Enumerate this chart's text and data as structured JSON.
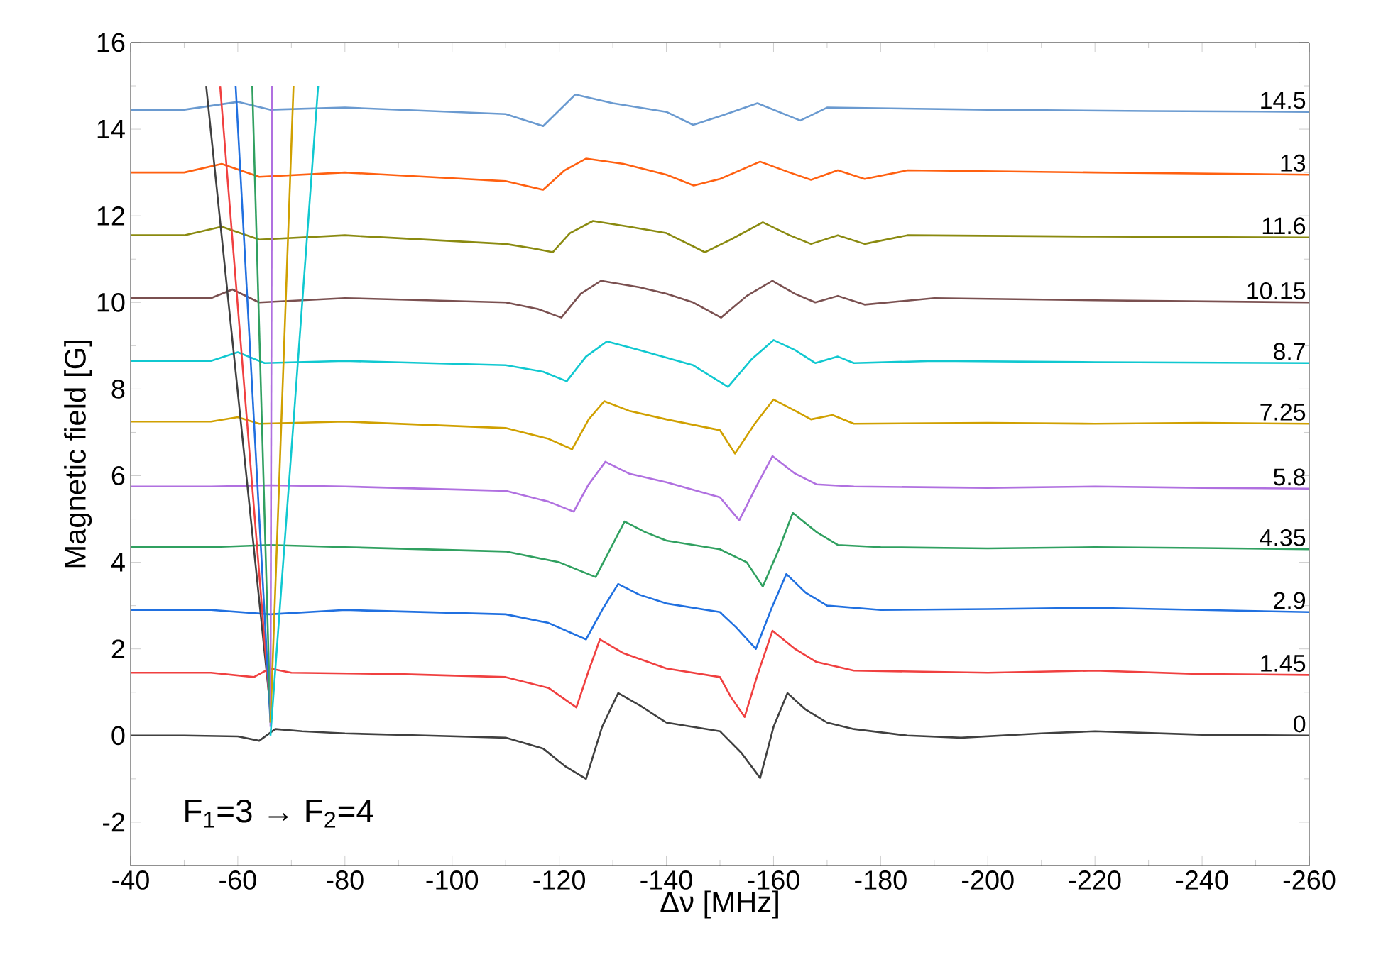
{
  "chart_data": {
    "type": "line",
    "xlabel": "Δν [MHz]",
    "ylabel": "Magnetic field [G]",
    "annotations": [
      "F$_{1}$=3 → F$_{2}$=4"
    ],
    "xlim": [
      -40,
      -260
    ],
    "ylim": [
      -3,
      16
    ],
    "xticks": [
      -40,
      -60,
      -80,
      -100,
      -120,
      -140,
      -160,
      -180,
      -200,
      -220,
      -240,
      -260
    ],
    "yticks": [
      -2,
      0,
      2,
      4,
      6,
      8,
      10,
      12,
      14,
      16
    ],
    "grid": false,
    "legend": false,
    "marker": "none",
    "line_style": "solid",
    "series": [
      {
        "name": "0",
        "color": "#404040",
        "x": [
          -40,
          -50,
          -60,
          -64,
          -67,
          -72,
          -80,
          -95,
          -110,
          -117,
          -121,
          -125,
          -128,
          -131,
          -135,
          -140,
          -150,
          -154,
          -157.5,
          -160,
          -162.6,
          -166,
          -170,
          -175,
          -185,
          -195,
          -210,
          -220,
          -240,
          -260
        ],
        "values": [
          0,
          0,
          -0.02,
          -0.12,
          0.15,
          0.1,
          0.05,
          0,
          -0.05,
          -0.3,
          -0.7,
          -1.0,
          0.2,
          0.98,
          0.7,
          0.3,
          0.1,
          -0.4,
          -0.98,
          0.2,
          0.98,
          0.6,
          0.3,
          0.15,
          0,
          -0.05,
          0.05,
          0.1,
          0.02,
          0
        ]
      },
      {
        "name": "1.45",
        "color": "#f04040",
        "x": [
          -40,
          -55,
          -63,
          -66,
          -70,
          -90,
          -110,
          -118,
          -123.2,
          -125.5,
          -127.6,
          -132,
          -140,
          -150,
          -152,
          -154.6,
          -157,
          -159.8,
          -164,
          -168,
          -175,
          -200,
          -220,
          -240,
          -260
        ],
        "values": [
          1.45,
          1.45,
          1.35,
          1.55,
          1.45,
          1.42,
          1.35,
          1.1,
          0.65,
          1.5,
          2.22,
          1.9,
          1.55,
          1.35,
          0.9,
          0.43,
          1.4,
          2.42,
          2.0,
          1.7,
          1.5,
          1.45,
          1.5,
          1.42,
          1.4
        ]
      },
      {
        "name": "2.9",
        "color": "#2070e0",
        "x": [
          -40,
          -55,
          -66,
          -80,
          -110,
          -118,
          -125,
          -128,
          -131,
          -135,
          -140,
          -150,
          -153,
          -156.7,
          -159.5,
          -162.4,
          -166,
          -170,
          -180,
          -200,
          -220,
          -240,
          -260
        ],
        "values": [
          2.9,
          2.9,
          2.8,
          2.9,
          2.8,
          2.6,
          2.22,
          2.9,
          3.5,
          3.25,
          3.05,
          2.85,
          2.5,
          2.0,
          2.9,
          3.73,
          3.3,
          3.0,
          2.9,
          2.92,
          2.95,
          2.9,
          2.85
        ]
      },
      {
        "name": "4.35",
        "color": "#30a060",
        "x": [
          -40,
          -55,
          -66,
          -80,
          -110,
          -120,
          -126.8,
          -129.5,
          -132.2,
          -136,
          -140,
          -150,
          -155,
          -158,
          -161,
          -163.6,
          -168,
          -172,
          -180,
          -200,
          -220,
          -240,
          -260
        ],
        "values": [
          4.35,
          4.35,
          4.4,
          4.35,
          4.25,
          4.0,
          3.66,
          4.3,
          4.94,
          4.7,
          4.5,
          4.3,
          4.0,
          3.44,
          4.3,
          5.14,
          4.7,
          4.4,
          4.35,
          4.32,
          4.35,
          4.33,
          4.3
        ]
      },
      {
        "name": "5.8",
        "color": "#b070e0",
        "x": [
          -40,
          -55,
          -66,
          -80,
          -110,
          -118,
          -122.7,
          -125.5,
          -128.6,
          -133,
          -140,
          -150,
          -153.6,
          -157,
          -159.8,
          -164,
          -168,
          -175,
          -200,
          -220,
          -240,
          -260
        ],
        "values": [
          5.75,
          5.75,
          5.78,
          5.75,
          5.65,
          5.4,
          5.17,
          5.8,
          6.32,
          6.05,
          5.85,
          5.5,
          4.97,
          5.8,
          6.45,
          6.05,
          5.8,
          5.75,
          5.72,
          5.75,
          5.72,
          5.7
        ]
      },
      {
        "name": "7.25",
        "color": "#d0a000",
        "x": [
          -40,
          -55,
          -60,
          -64,
          -80,
          -110,
          -118,
          -122.4,
          -125.5,
          -128.4,
          -133,
          -140,
          -150,
          -152.8,
          -156.5,
          -160,
          -164,
          -167,
          -171,
          -175,
          -200,
          -220,
          -240,
          -260
        ],
        "values": [
          7.25,
          7.25,
          7.35,
          7.2,
          7.25,
          7.1,
          6.85,
          6.61,
          7.3,
          7.72,
          7.5,
          7.3,
          7.05,
          6.51,
          7.2,
          7.76,
          7.5,
          7.3,
          7.4,
          7.2,
          7.22,
          7.2,
          7.22,
          7.2
        ]
      },
      {
        "name": "8.7",
        "color": "#10c8d0",
        "x": [
          -40,
          -55,
          -60,
          -65,
          -80,
          -110,
          -117,
          -121.4,
          -125,
          -128.9,
          -135,
          -145,
          -151.5,
          -156,
          -160,
          -164,
          -167.8,
          -172,
          -175,
          -190,
          -220,
          -260
        ],
        "values": [
          8.65,
          8.65,
          8.85,
          8.6,
          8.65,
          8.55,
          8.4,
          8.18,
          8.75,
          9.1,
          8.9,
          8.55,
          8.05,
          8.7,
          9.13,
          8.9,
          8.6,
          8.75,
          8.6,
          8.65,
          8.62,
          8.6
        ]
      },
      {
        "name": "10.15",
        "color": "#7a5050",
        "x": [
          -40,
          -55,
          -59,
          -64,
          -80,
          -110,
          -116,
          -120.4,
          -124,
          -127.8,
          -135,
          -140,
          -145,
          -150.2,
          -155,
          -159.8,
          -164,
          -167.8,
          -172,
          -177,
          -190,
          -220,
          -260
        ],
        "values": [
          10.1,
          10.1,
          10.3,
          10.0,
          10.1,
          10.0,
          9.85,
          9.65,
          10.2,
          10.5,
          10.35,
          10.2,
          10.0,
          9.65,
          10.15,
          10.5,
          10.2,
          10.0,
          10.15,
          9.95,
          10.1,
          10.05,
          10.0
        ]
      },
      {
        "name": "11.6",
        "color": "#8a8a10",
        "x": [
          -40,
          -50,
          -57,
          -64,
          -80,
          -110,
          -115,
          -118.8,
          -122,
          -126.3,
          -133,
          -140,
          -147.2,
          -152,
          -158,
          -163,
          -167,
          -172,
          -177,
          -185,
          -220,
          -260
        ],
        "values": [
          11.55,
          11.55,
          11.75,
          11.45,
          11.55,
          11.35,
          11.25,
          11.16,
          11.6,
          11.88,
          11.75,
          11.6,
          11.16,
          11.45,
          11.85,
          11.55,
          11.35,
          11.55,
          11.35,
          11.55,
          11.52,
          11.5
        ]
      },
      {
        "name": "13",
        "color": "#ff6010",
        "x": [
          -40,
          -50,
          -57,
          -64,
          -80,
          -110,
          -117,
          -121,
          -125,
          -132,
          -140,
          -145.1,
          -150,
          -157.5,
          -163,
          -167,
          -172,
          -177,
          -185,
          -220,
          -260
        ],
        "values": [
          13.0,
          13.0,
          13.2,
          12.9,
          13.0,
          12.8,
          12.6,
          13.05,
          13.32,
          13.2,
          12.95,
          12.7,
          12.85,
          13.25,
          13.0,
          12.83,
          13.05,
          12.85,
          13.05,
          13.0,
          12.95
        ]
      },
      {
        "name": "14.5",
        "color": "#6a9ad0",
        "x": [
          -40,
          -50,
          -60,
          -66,
          -80,
          -110,
          -117,
          -123,
          -130,
          -140,
          -145,
          -150,
          -157,
          -165,
          -170,
          -200,
          -230,
          -260
        ],
        "values": [
          14.45,
          14.45,
          14.63,
          14.45,
          14.5,
          14.35,
          14.07,
          14.8,
          14.6,
          14.4,
          14.1,
          14.3,
          14.6,
          14.2,
          14.5,
          14.45,
          14.42,
          14.4
        ]
      },
      {
        "color": "#404040",
        "x": [
          -54.1,
          -66.1
        ],
        "values": [
          15,
          0.6
        ]
      },
      {
        "color": "#f04040",
        "x": [
          -56.7,
          -66.1
        ],
        "values": [
          15,
          0.5
        ]
      },
      {
        "color": "#2070e0",
        "x": [
          -59.6,
          -66.1
        ],
        "values": [
          15,
          0.3
        ]
      },
      {
        "color": "#30a060",
        "x": [
          -62.7,
          -66.1
        ],
        "values": [
          15,
          0.3
        ]
      },
      {
        "color": "#b070e0",
        "x": [
          -66.4,
          -66.1
        ],
        "values": [
          15,
          0.2
        ]
      },
      {
        "color": "#d0a000",
        "x": [
          -70.4,
          -66.1
        ],
        "values": [
          15,
          0.3
        ]
      },
      {
        "color": "#10c8d0",
        "x": [
          -75,
          -66.1
        ],
        "values": [
          15,
          0.0
        ]
      }
    ]
  }
}
